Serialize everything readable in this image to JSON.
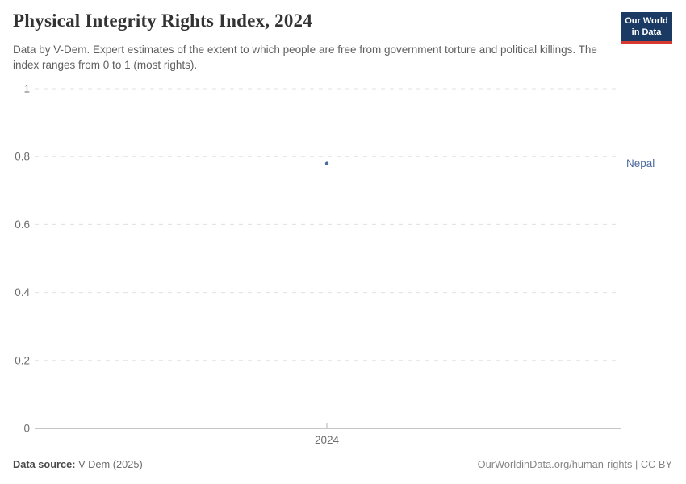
{
  "header": {
    "title": "Physical Integrity Rights Index, 2024",
    "subtitle": "Data by V-Dem. Expert estimates of the extent to which people are free from government torture and political killings. The index ranges from 0 to 1 (most rights).",
    "logo": {
      "line1": "Our World",
      "line2": "in Data",
      "bg_color": "#1a3a63",
      "bar_color": "#d7382f"
    }
  },
  "chart_data": {
    "type": "scatter",
    "title": "Physical Integrity Rights Index, 2024",
    "xlabel": "",
    "ylabel": "",
    "x": [
      2024
    ],
    "x_ticks": [
      "2024"
    ],
    "y_ticks": [
      0,
      0.2,
      0.4,
      0.6,
      0.8,
      1
    ],
    "ylim": [
      0,
      1
    ],
    "grid": "horizontal-dashed",
    "legend_position": "right-of-plot",
    "series": [
      {
        "name": "Nepal",
        "values": [
          0.78
        ],
        "color": "#4c6a9c"
      }
    ],
    "colors": {
      "gridline": "#e0e0e0",
      "axis_line": "#8c8c8c",
      "tick_mark": "#b3b3b3"
    }
  },
  "footer": {
    "source_label": "Data source:",
    "source_value": " V-Dem (2025)",
    "attribution": "OurWorldinData.org/human-rights | CC BY"
  }
}
